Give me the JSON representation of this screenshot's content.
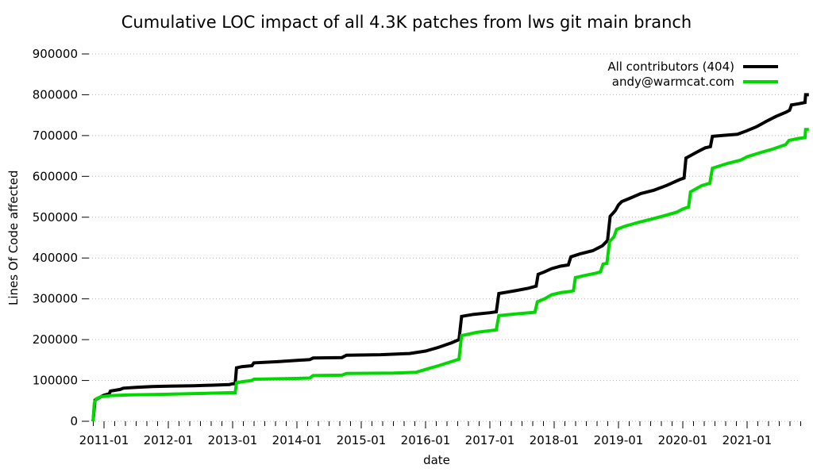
{
  "chart_data": {
    "type": "line",
    "subtype": "cumulative-step",
    "title": "Cumulative LOC impact of all 4.3K patches from lws git main branch",
    "xlabel": "date",
    "ylabel": "Lines Of Code affected",
    "ylim": [
      0,
      900000
    ],
    "xlim_years": [
      "2010-10",
      "2022-01"
    ],
    "y_ticks": [
      0,
      100000,
      200000,
      300000,
      400000,
      500000,
      600000,
      700000,
      800000,
      900000
    ],
    "x_ticks": [
      [
        2011,
        "2011-01"
      ],
      [
        2012,
        "2012-01"
      ],
      [
        2013,
        "2013-01"
      ],
      [
        2014,
        "2014-01"
      ],
      [
        2015,
        "2015-01"
      ],
      [
        2016,
        "2016-01"
      ],
      [
        2017,
        "2017-01"
      ],
      [
        2018,
        "2018-01"
      ],
      [
        2019,
        "2019-01"
      ],
      [
        2020,
        "2020-01"
      ],
      [
        2021,
        "2021-01"
      ]
    ],
    "x_minor_tick_interval_months": 2,
    "grid": "horizontal",
    "grid_style": "dotted",
    "grid_color": "#b0b0b0",
    "axis_color": "#000000",
    "background_color": "#ffffff",
    "legend_position": "top-right",
    "series": [
      {
        "name": "All contributors (404)",
        "color": "#000000",
        "points": [
          [
            2010.83,
            0
          ],
          [
            2010.86,
            52000
          ],
          [
            2010.95,
            60000
          ],
          [
            2011.0,
            64000
          ],
          [
            2011.08,
            67000
          ],
          [
            2011.1,
            74000
          ],
          [
            2011.25,
            78000
          ],
          [
            2011.3,
            81000
          ],
          [
            2011.5,
            83000
          ],
          [
            2011.75,
            85000
          ],
          [
            2012.0,
            86000
          ],
          [
            2012.4,
            87000
          ],
          [
            2012.7,
            88500
          ],
          [
            2012.95,
            90000
          ],
          [
            2013.0,
            92000
          ],
          [
            2013.04,
            92000
          ],
          [
            2013.06,
            131000
          ],
          [
            2013.15,
            134000
          ],
          [
            2013.3,
            136000
          ],
          [
            2013.33,
            143000
          ],
          [
            2013.7,
            146000
          ],
          [
            2014.0,
            149000
          ],
          [
            2014.2,
            151000
          ],
          [
            2014.25,
            155000
          ],
          [
            2014.7,
            156000
          ],
          [
            2014.77,
            162000
          ],
          [
            2015.3,
            163000
          ],
          [
            2015.75,
            166000
          ],
          [
            2016.0,
            172000
          ],
          [
            2016.2,
            181000
          ],
          [
            2016.4,
            192000
          ],
          [
            2016.52,
            200000
          ],
          [
            2016.56,
            257000
          ],
          [
            2016.75,
            262000
          ],
          [
            2017.0,
            266000
          ],
          [
            2017.1,
            268000
          ],
          [
            2017.14,
            313000
          ],
          [
            2017.4,
            320000
          ],
          [
            2017.6,
            326000
          ],
          [
            2017.72,
            331000
          ],
          [
            2017.75,
            360000
          ],
          [
            2017.85,
            366000
          ],
          [
            2017.96,
            374000
          ],
          [
            2018.1,
            380000
          ],
          [
            2018.22,
            383000
          ],
          [
            2018.26,
            403000
          ],
          [
            2018.4,
            410000
          ],
          [
            2018.6,
            418000
          ],
          [
            2018.75,
            430000
          ],
          [
            2018.83,
            443000
          ],
          [
            2018.87,
            502000
          ],
          [
            2018.95,
            516000
          ],
          [
            2019.0,
            530000
          ],
          [
            2019.05,
            538000
          ],
          [
            2019.2,
            548000
          ],
          [
            2019.35,
            558000
          ],
          [
            2019.55,
            566000
          ],
          [
            2019.75,
            578000
          ],
          [
            2019.95,
            592000
          ],
          [
            2020.02,
            596000
          ],
          [
            2020.05,
            645000
          ],
          [
            2020.25,
            662000
          ],
          [
            2020.35,
            670000
          ],
          [
            2020.43,
            673000
          ],
          [
            2020.46,
            698000
          ],
          [
            2020.6,
            700000
          ],
          [
            2020.85,
            703000
          ],
          [
            2021.0,
            712000
          ],
          [
            2021.15,
            722000
          ],
          [
            2021.3,
            735000
          ],
          [
            2021.45,
            747000
          ],
          [
            2021.6,
            757000
          ],
          [
            2021.66,
            762000
          ],
          [
            2021.69,
            775000
          ],
          [
            2021.8,
            778000
          ],
          [
            2021.9,
            781000
          ],
          [
            2021.91,
            800000
          ],
          [
            2021.96,
            800000
          ]
        ]
      },
      {
        "name": "andy@warmcat.com",
        "color": "#00d800",
        "points": [
          [
            2010.83,
            0
          ],
          [
            2010.85,
            45000
          ],
          [
            2010.88,
            55000
          ],
          [
            2010.95,
            60000
          ],
          [
            2011.1,
            63000
          ],
          [
            2011.4,
            64500
          ],
          [
            2011.8,
            65500
          ],
          [
            2012.2,
            67000
          ],
          [
            2012.6,
            68500
          ],
          [
            2012.95,
            70000
          ],
          [
            2013.04,
            70000
          ],
          [
            2013.06,
            94000
          ],
          [
            2013.15,
            97000
          ],
          [
            2013.3,
            100000
          ],
          [
            2013.33,
            103000
          ],
          [
            2014.0,
            105000
          ],
          [
            2014.2,
            106000
          ],
          [
            2014.25,
            112000
          ],
          [
            2014.7,
            113000
          ],
          [
            2014.77,
            117000
          ],
          [
            2015.5,
            118000
          ],
          [
            2015.85,
            120000
          ],
          [
            2016.0,
            127000
          ],
          [
            2016.2,
            136000
          ],
          [
            2016.4,
            146000
          ],
          [
            2016.52,
            152000
          ],
          [
            2016.56,
            210000
          ],
          [
            2016.8,
            218000
          ],
          [
            2017.0,
            222000
          ],
          [
            2017.1,
            224000
          ],
          [
            2017.14,
            259000
          ],
          [
            2017.4,
            263000
          ],
          [
            2017.7,
            267000
          ],
          [
            2017.74,
            293000
          ],
          [
            2017.85,
            300000
          ],
          [
            2017.96,
            310000
          ],
          [
            2018.1,
            315000
          ],
          [
            2018.25,
            318000
          ],
          [
            2018.3,
            320000
          ],
          [
            2018.33,
            352000
          ],
          [
            2018.5,
            358000
          ],
          [
            2018.65,
            363000
          ],
          [
            2018.72,
            366000
          ],
          [
            2018.76,
            385000
          ],
          [
            2018.82,
            387000
          ],
          [
            2018.86,
            440000
          ],
          [
            2018.93,
            452000
          ],
          [
            2018.97,
            470000
          ],
          [
            2019.1,
            478000
          ],
          [
            2019.3,
            487000
          ],
          [
            2019.5,
            495000
          ],
          [
            2019.7,
            503000
          ],
          [
            2019.9,
            512000
          ],
          [
            2020.0,
            520000
          ],
          [
            2020.09,
            525000
          ],
          [
            2020.12,
            562000
          ],
          [
            2020.3,
            578000
          ],
          [
            2020.42,
            583000
          ],
          [
            2020.46,
            620000
          ],
          [
            2020.7,
            632000
          ],
          [
            2020.9,
            640000
          ],
          [
            2021.0,
            648000
          ],
          [
            2021.2,
            658000
          ],
          [
            2021.4,
            667000
          ],
          [
            2021.6,
            678000
          ],
          [
            2021.65,
            688000
          ],
          [
            2021.8,
            693000
          ],
          [
            2021.9,
            695000
          ],
          [
            2021.91,
            715000
          ],
          [
            2021.96,
            715000
          ]
        ]
      }
    ]
  }
}
